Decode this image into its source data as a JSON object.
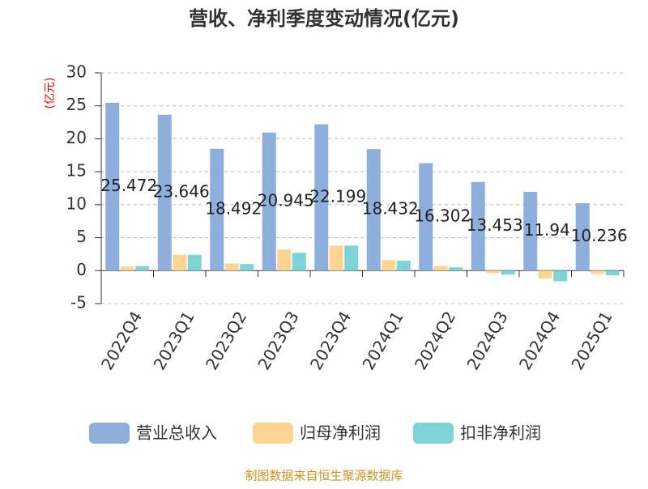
{
  "chart_data": {
    "type": "bar",
    "title": "营收、净利季度变动情况(亿元)",
    "y_label": "(亿元)",
    "source": "制图数据来自恒生聚源数据库",
    "categories": [
      "2022Q4",
      "2023Q1",
      "2023Q2",
      "2023Q3",
      "2023Q4",
      "2024Q1",
      "2024Q2",
      "2024Q3",
      "2024Q4",
      "2025Q1"
    ],
    "series": [
      {
        "name": "营业总收入",
        "color": "#8eaedc",
        "values": [
          25.472,
          23.646,
          18.492,
          20.945,
          22.199,
          18.432,
          16.302,
          13.453,
          11.94,
          10.236
        ],
        "data_labels": true
      },
      {
        "name": "归母净利润",
        "color": "#fdd592",
        "values": [
          0.6,
          2.4,
          1.1,
          3.2,
          3.8,
          1.6,
          0.7,
          -0.4,
          -1.2,
          -0.5
        ]
      },
      {
        "name": "扣非净利润",
        "color": "#7fd3d6",
        "values": [
          0.7,
          2.4,
          1.0,
          2.7,
          3.8,
          1.5,
          0.5,
          -0.6,
          -1.6,
          -0.7
        ]
      }
    ],
    "ylim": [
      -5,
      30
    ],
    "yticks": [
      -5,
      0,
      5,
      10,
      15,
      20,
      25,
      30
    ],
    "grid": true,
    "legend": "bottom"
  }
}
